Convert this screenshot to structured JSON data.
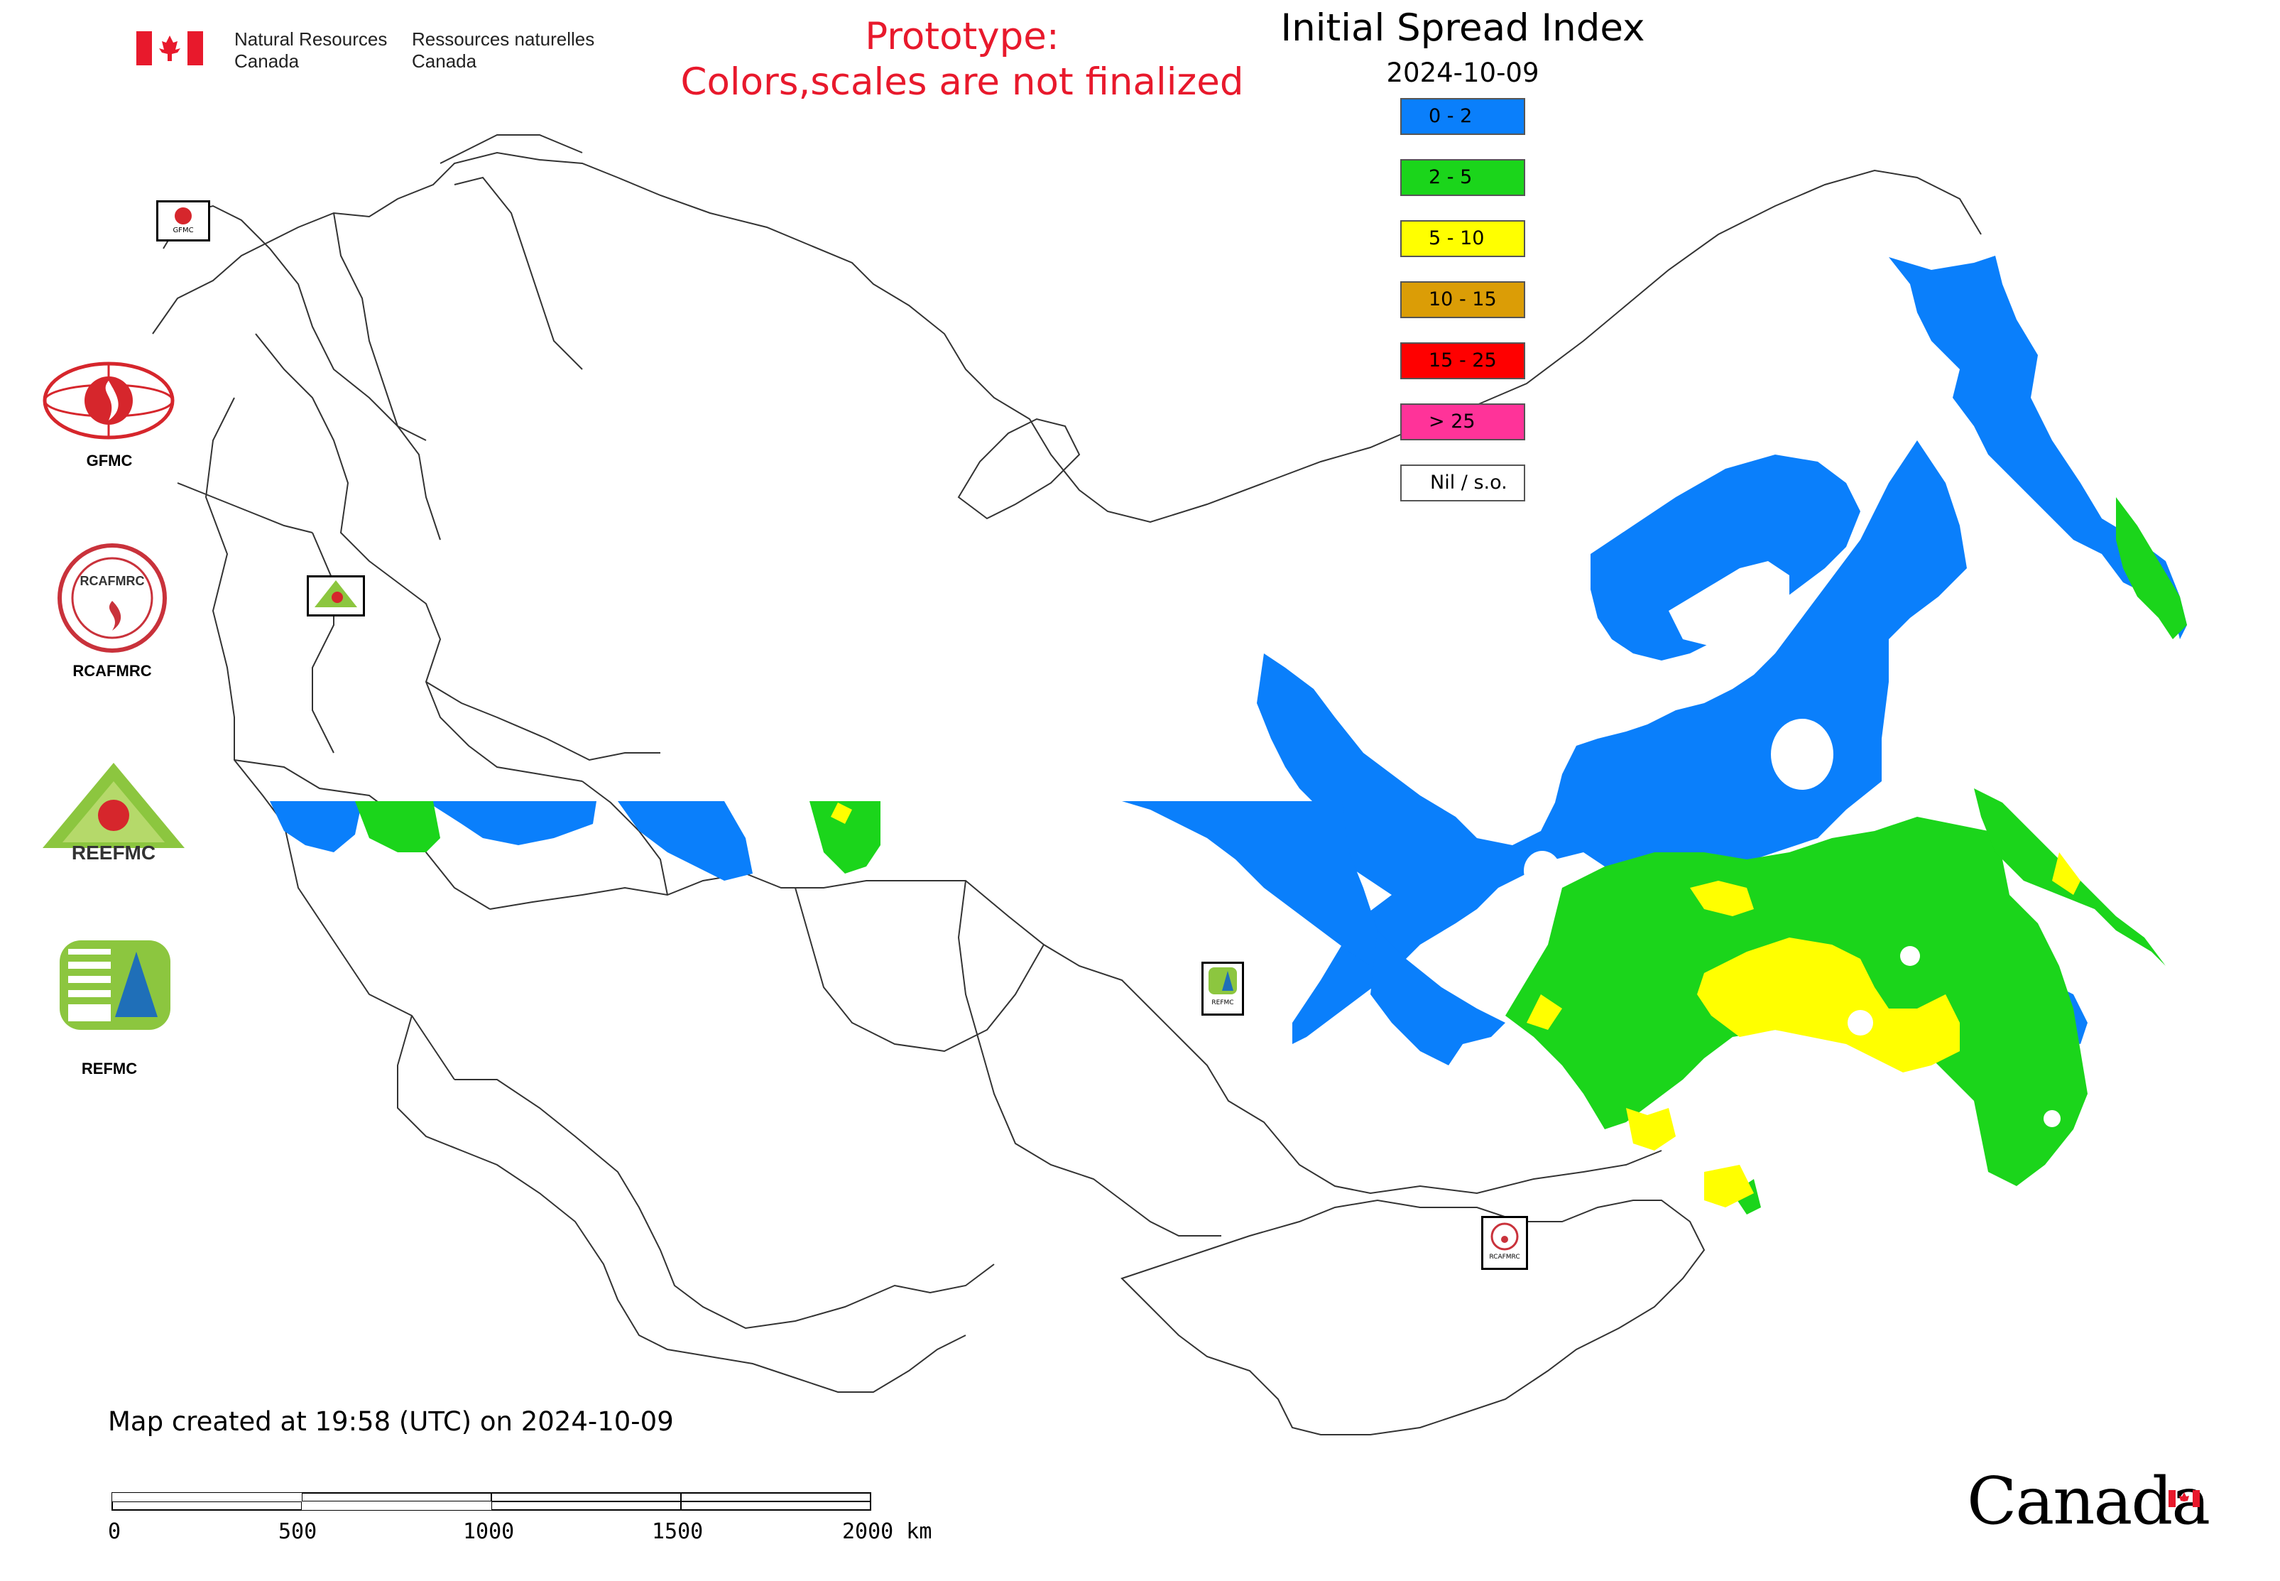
{
  "header": {
    "agency_en_line1": "Natural Resources",
    "agency_en_line2": "Canada",
    "agency_fr_line1": "Ressources naturelles",
    "agency_fr_line2": "Canada",
    "prototype_line1": "Prototype:",
    "prototype_line2": "Colors,scales are not finalized",
    "title": "Initial Spread Index",
    "date": "2024-10-09"
  },
  "legend": {
    "items": [
      {
        "label": "0 - 2",
        "color": "#0a7ffb"
      },
      {
        "label": "2 - 5",
        "color": "#1bd51b"
      },
      {
        "label": "5 - 10",
        "color": "#ffff00"
      },
      {
        "label": "10 - 15",
        "color": "#db9d06"
      },
      {
        "label": "15 - 25",
        "color": "#ff0000"
      },
      {
        "label": "> 25",
        "color": "#ff3399"
      },
      {
        "label": "Nil / s.o.",
        "color": "#ffffff"
      }
    ]
  },
  "side_logos": [
    "GFMC",
    "RCAFMRC",
    "REFMC"
  ],
  "map_badges": [
    "GFMC",
    "REEFMC",
    "REFMC",
    "RCAFMRC"
  ],
  "footer": {
    "created": "Map created at 19:58 (UTC) on 2024-10-09",
    "scale_ticks": [
      "0",
      "500",
      "1000",
      "1500",
      "2000 km"
    ],
    "wordmark": "Canada"
  },
  "colors": {
    "prototype_text": "#e8192c",
    "flag_red": "#e8192c"
  }
}
